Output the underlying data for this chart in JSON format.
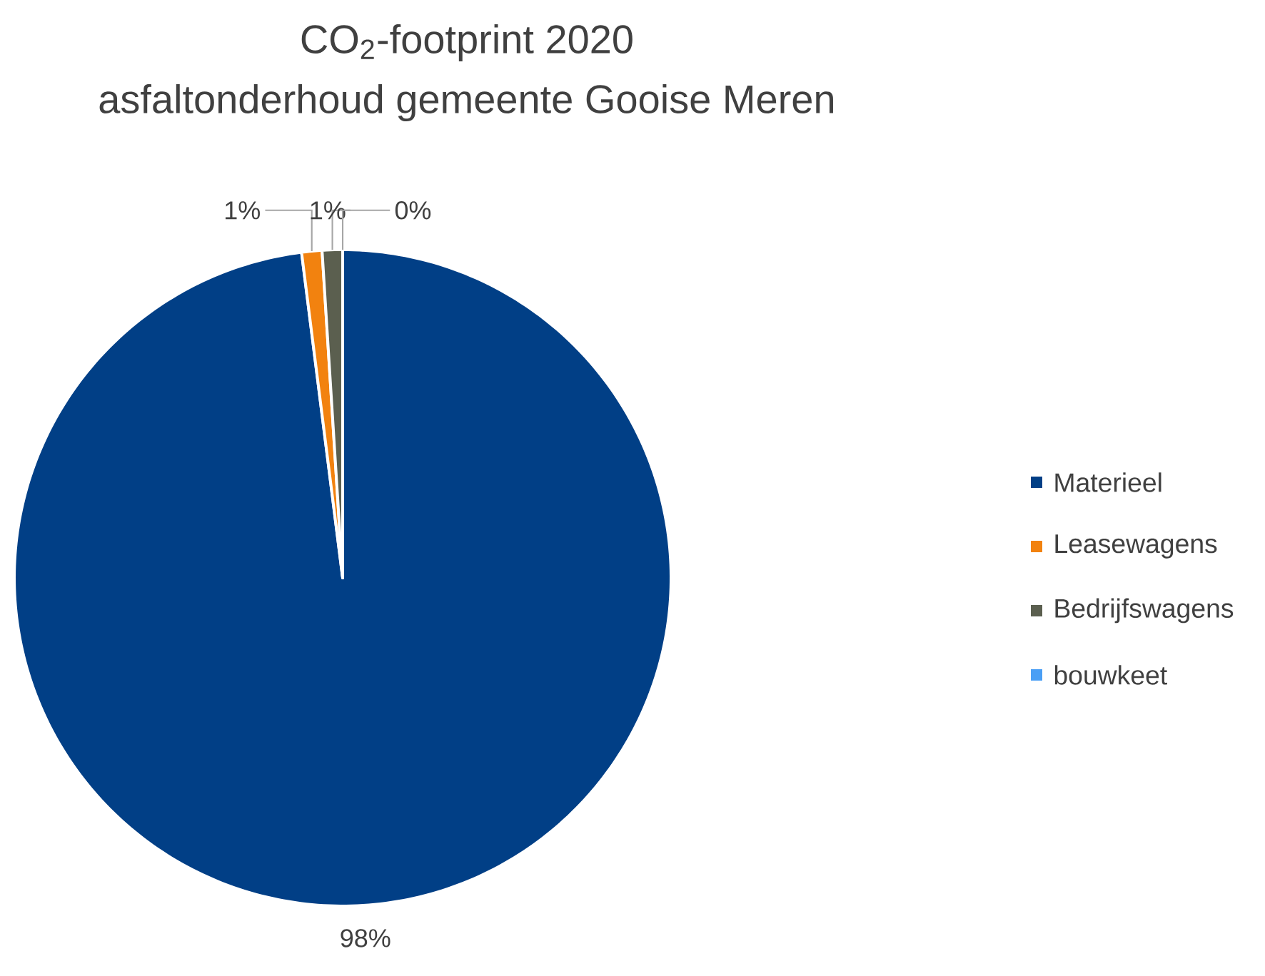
{
  "chart_data": {
    "type": "pie",
    "title": "CO$_{2}$-footprint 2020",
    "subtitle": "asfaltonderhoud gemeente Gooise Meren",
    "categories": [
      "Materieel",
      "Leasewagens",
      "Bedrijfswagens",
      "bouwkeet"
    ],
    "values": [
      98,
      1,
      1,
      0
    ],
    "value_labels": [
      "98%",
      "1%",
      "1%",
      "0%"
    ],
    "colors": [
      "#013f86",
      "#f2820f",
      "#5b5f4f",
      "#4a9ff5"
    ],
    "legend": "right"
  }
}
